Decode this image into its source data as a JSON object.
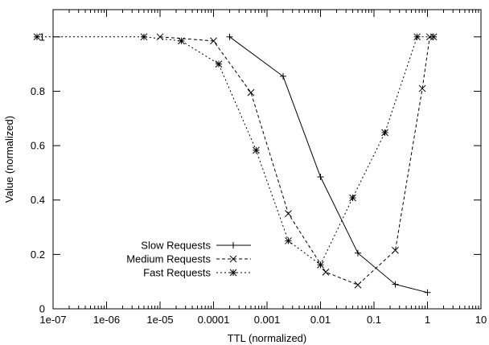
{
  "chart_data": {
    "type": "line",
    "title": "",
    "xlabel": "TTL (normalized)",
    "ylabel": "Value (normalized)",
    "xscale": "log",
    "xlim": [
      1e-07,
      10
    ],
    "ylim": [
      0,
      1.1
    ],
    "xticks": [
      {
        "value": 1e-07,
        "label": "1e-07"
      },
      {
        "value": 1e-06,
        "label": "1e-06"
      },
      {
        "value": 1e-05,
        "label": "1e-05"
      },
      {
        "value": 0.0001,
        "label": "0.0001"
      },
      {
        "value": 0.001,
        "label": "0.001"
      },
      {
        "value": 0.01,
        "label": "0.01"
      },
      {
        "value": 0.1,
        "label": "0.1"
      },
      {
        "value": 1,
        "label": "1"
      },
      {
        "value": 10,
        "label": "10"
      }
    ],
    "yticks": [
      {
        "value": 0,
        "label": "0"
      },
      {
        "value": 0.2,
        "label": "0.2"
      },
      {
        "value": 0.4,
        "label": "0.4"
      },
      {
        "value": 0.6,
        "label": "0.6"
      },
      {
        "value": 0.8,
        "label": "0.8"
      },
      {
        "value": 1,
        "label": "1"
      }
    ],
    "grid": false,
    "legend_position": "bottom-left",
    "series": [
      {
        "name": "Slow Requests",
        "marker": "plus",
        "dash": "solid",
        "x": [
          0.0002,
          0.002,
          0.01,
          0.05,
          0.25,
          1.0
        ],
        "y": [
          1.0,
          0.855,
          0.485,
          0.205,
          0.09,
          0.06
        ]
      },
      {
        "name": "Medium Requests",
        "marker": "cross",
        "dash": "dashed",
        "x": [
          1e-05,
          0.0001,
          0.0005,
          0.0025,
          0.0125,
          0.05,
          0.25,
          0.8,
          1.1
        ],
        "y": [
          1.0,
          0.985,
          0.795,
          0.35,
          0.135,
          0.088,
          0.215,
          0.81,
          1.0
        ]
      },
      {
        "name": "Fast Requests",
        "marker": "star",
        "dash": "dotted",
        "x": [
          5e-08,
          5e-06,
          2.5e-05,
          0.000125,
          0.000625,
          0.0025,
          0.01,
          0.04,
          0.16,
          0.64,
          1.3
        ],
        "y": [
          1.0,
          1.0,
          0.985,
          0.9,
          0.583,
          0.25,
          0.162,
          0.408,
          0.648,
          1.0,
          1.0
        ]
      }
    ]
  }
}
